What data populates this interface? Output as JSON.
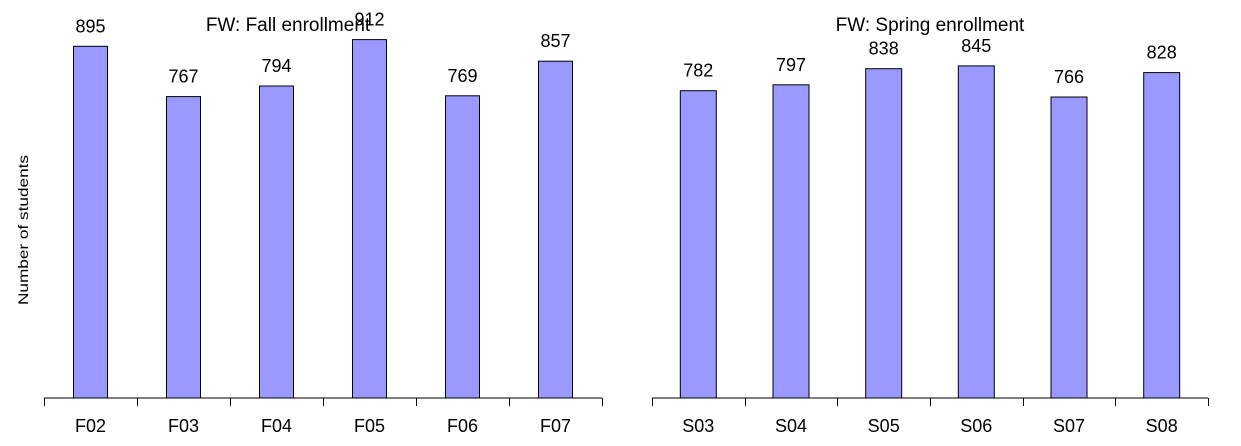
{
  "chart_data": [
    {
      "type": "bar",
      "title": "FW: Fall enrollment",
      "ylabel": "Number of students",
      "xlabel": "",
      "categories": [
        "F02",
        "F03",
        "F04",
        "F05",
        "F06",
        "F07"
      ],
      "values": [
        895,
        767,
        794,
        912,
        769,
        857
      ],
      "data_labels": [
        "895",
        "767",
        "794",
        "912",
        "769",
        "857"
      ],
      "ylim": [
        0,
        1000
      ],
      "grid": false,
      "bar_color": "#9999ff",
      "bar_edge_color": "#000000"
    },
    {
      "type": "bar",
      "title": "FW: Spring enrollment",
      "ylabel": "",
      "xlabel": "",
      "categories": [
        "S03",
        "S04",
        "S05",
        "S06",
        "S07",
        "S08"
      ],
      "values": [
        782,
        797,
        838,
        845,
        766,
        828
      ],
      "data_labels": [
        "782",
        "797",
        "838",
        "845",
        "766",
        "828"
      ],
      "ylim": [
        0,
        1000
      ],
      "grid": false,
      "bar_color": "#9999ff",
      "bar_edge_color": "#000000"
    }
  ]
}
